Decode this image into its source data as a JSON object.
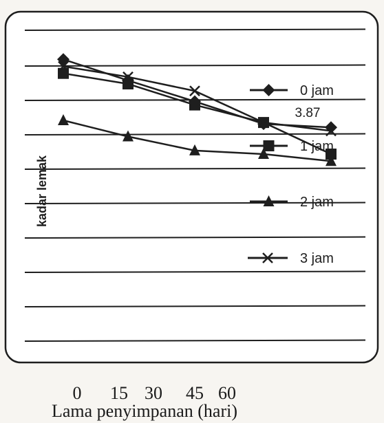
{
  "chart_data": {
    "type": "line",
    "title": "",
    "xlabel": "Lama penyimpanan (hari)",
    "ylabel": "kadar lemak",
    "x_ticks": [
      "0",
      "15",
      "30",
      "45",
      "60"
    ],
    "annotation": "3.87",
    "grid": true,
    "legend_position": "right, inside plot",
    "series": [
      {
        "name": "0 jam",
        "marker": "diamond",
        "values": [
          4.35,
          4.05,
          3.75,
          3.43,
          3.38
        ]
      },
      {
        "name": "1 jam",
        "marker": "square",
        "values": [
          4.15,
          4.0,
          3.7,
          3.45,
          3.0
        ]
      },
      {
        "name": "2 jam",
        "marker": "triangle",
        "values": [
          3.48,
          3.25,
          3.05,
          3.0,
          2.9
        ]
      },
      {
        "name": "3 jam",
        "marker": "x",
        "values": [
          4.25,
          4.1,
          3.9,
          3.45,
          3.33
        ]
      }
    ],
    "colors": {
      "line": "#1e1e1e",
      "grid": "#1e1e1e",
      "background": "#f7f5f1"
    }
  }
}
